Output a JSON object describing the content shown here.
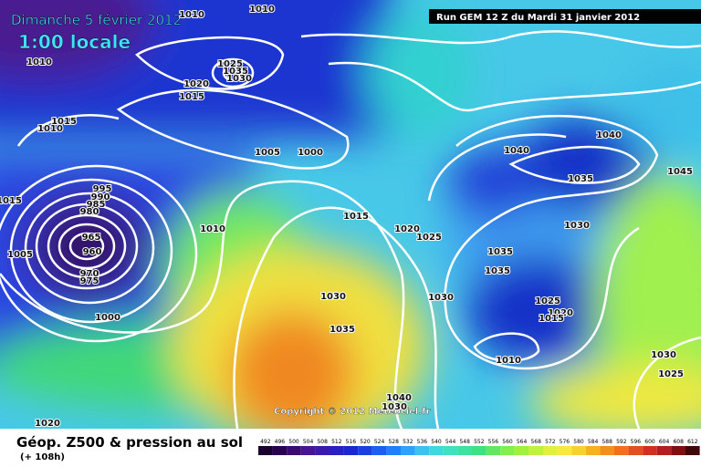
{
  "header": {
    "date": "Dimanche 5 février 2012",
    "time": "1:00 locale",
    "run": "Run GEM 12 Z du Mardi 31 janvier 2012"
  },
  "copyright": "Copyright © 2012 Meteociel.fr",
  "footer": {
    "title": "Géop. Z500 & pression au sol",
    "lead": "(+ 108h)"
  },
  "isobars": [
    1010,
    1010,
    1010,
    1025,
    1035,
    1030,
    1020,
    1015,
    1015,
    1010,
    1005,
    1000,
    1015,
    995,
    990,
    985,
    980,
    965,
    960,
    970,
    975,
    1005,
    1010,
    1000,
    1015,
    1020,
    1025,
    1030,
    1035,
    1030,
    1040,
    1040,
    1035,
    1030,
    1045,
    1035,
    1035,
    1025,
    1020,
    1015,
    1010,
    1030,
    1025,
    1040,
    1030,
    1020
  ],
  "scale": [
    492,
    496,
    500,
    504,
    508,
    512,
    516,
    520,
    524,
    528,
    532,
    536,
    540,
    544,
    548,
    552,
    556,
    560,
    564,
    568,
    572,
    576,
    580,
    584,
    588,
    592,
    596,
    600,
    604,
    608,
    612
  ]
}
